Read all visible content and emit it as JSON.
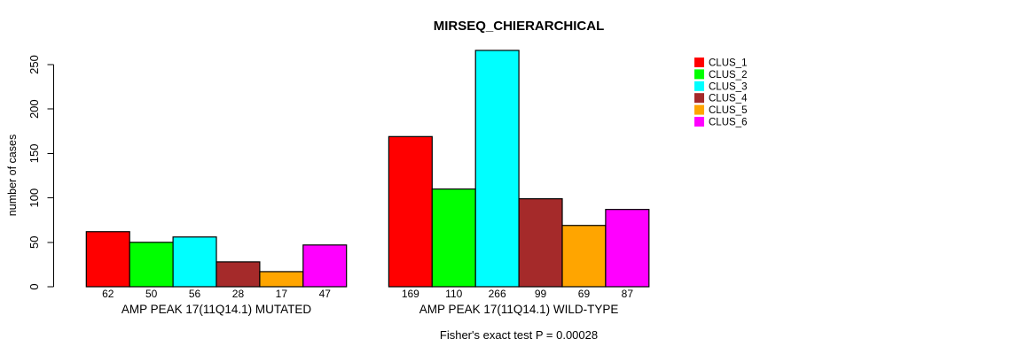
{
  "chart_data": {
    "type": "bar",
    "title": "MIRSEQ_CHIERARCHICAL",
    "ylabel": "number of cases",
    "xlabel": "",
    "yticks": [
      0,
      50,
      100,
      150,
      200,
      250
    ],
    "ylim": [
      0,
      250
    ],
    "grid": false,
    "legend_position": "right",
    "background": "#ffffff",
    "axis_color": "#000000",
    "bar_border_color": "#000000",
    "legend": [
      {
        "label": "CLUS_1",
        "color": "#ff0000"
      },
      {
        "label": "CLUS_2",
        "color": "#00ff00"
      },
      {
        "label": "CLUS_3",
        "color": "#00ffff"
      },
      {
        "label": "CLUS_4",
        "color": "#a52a2a"
      },
      {
        "label": "CLUS_5",
        "color": "#ffa500"
      },
      {
        "label": "CLUS_6",
        "color": "#ff00ff"
      }
    ],
    "groups": [
      {
        "label": "AMP PEAK 17(11Q14.1) MUTATED",
        "values": [
          62,
          50,
          56,
          28,
          17,
          47
        ]
      },
      {
        "label": "AMP PEAK 17(11Q14.1) WILD-TYPE",
        "values": [
          169,
          110,
          266,
          99,
          69,
          87
        ]
      }
    ],
    "annotation": "Fisher's exact test P = 0.00028"
  }
}
